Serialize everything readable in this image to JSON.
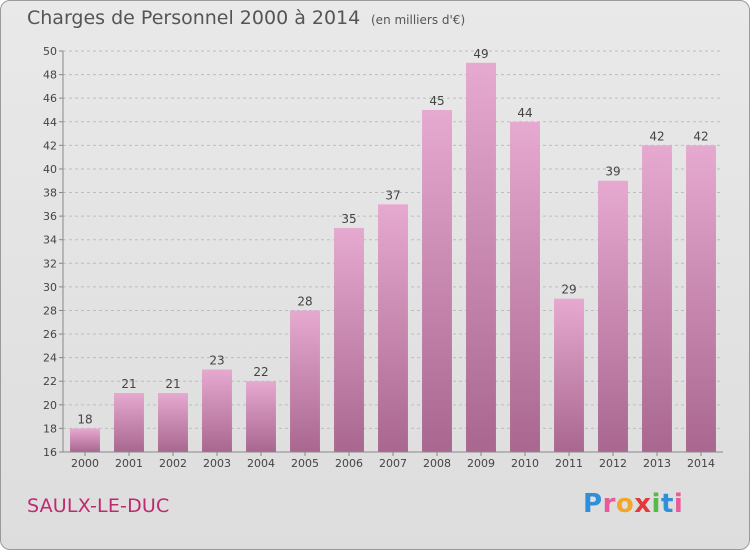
{
  "header": {
    "title": "Charges de Personnel 2000 à 2014",
    "unit": "(en milliers d'€)"
  },
  "footer": {
    "commune": "SAULX-LE-DUC",
    "logo_letters": [
      "P",
      "r",
      "o",
      "x",
      "i",
      "t",
      "i"
    ],
    "logo_colors": [
      "#2f8fd8",
      "#e85a9a",
      "#f2a72b",
      "#e23a3a",
      "#58b848",
      "#2f8fd8",
      "#e85a9a"
    ]
  },
  "colors": {
    "bar_light": "#e6a9cf",
    "bar_dark": "#a9678f",
    "grid": "#bdbdbd",
    "axis_text": "#444444",
    "title": "#555555",
    "commune": "#c02870"
  },
  "chart_data": {
    "type": "bar",
    "title": "Charges de Personnel 2000 à 2014",
    "categories": [
      "2000",
      "2001",
      "2002",
      "2003",
      "2004",
      "2005",
      "2006",
      "2007",
      "2008",
      "2009",
      "2010",
      "2011",
      "2012",
      "2013",
      "2014"
    ],
    "values": [
      18,
      21,
      21,
      23,
      22,
      28,
      35,
      37,
      45,
      49,
      44,
      29,
      39,
      42,
      42
    ],
    "ylim": [
      16,
      50
    ],
    "yticks": [
      16,
      18,
      20,
      22,
      24,
      26,
      28,
      30,
      32,
      34,
      36,
      38,
      40,
      42,
      44,
      46,
      48,
      50
    ],
    "grid": "horizontal dashed",
    "legend": "none"
  }
}
